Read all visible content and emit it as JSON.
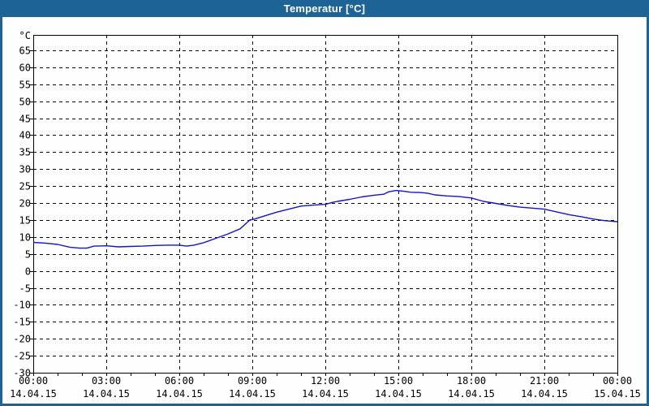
{
  "window": {
    "title": "Temperatur [°C]",
    "title_bar_color": "#1d6396",
    "border_color": "#1d6396",
    "title_text_color": "#ffffff",
    "background_color": "#fdfefd"
  },
  "chart_data": {
    "type": "line",
    "title": "Temperatur [°C]",
    "ylabel": "°C",
    "xlabel": "",
    "legend": null,
    "grid": {
      "shown": true,
      "style": "dashed",
      "color": "#000000"
    },
    "line_color": "#1515c9",
    "axis_color": "#000000",
    "y_axis": {
      "unit_label": "°C",
      "min": -30,
      "max": 65,
      "tick_step": 5
    },
    "x_axis": {
      "hours_span": 24,
      "minor_tick_every_hours": 1,
      "major_tick_every_hours": 3,
      "major_ticks": [
        {
          "hour": 0,
          "time": "00:00",
          "date": "14.04.15"
        },
        {
          "hour": 3,
          "time": "03:00",
          "date": "14.04.15"
        },
        {
          "hour": 6,
          "time": "06:00",
          "date": "14.04.15"
        },
        {
          "hour": 9,
          "time": "09:00",
          "date": "14.04.15"
        },
        {
          "hour": 12,
          "time": "12:00",
          "date": "14.04.15"
        },
        {
          "hour": 15,
          "time": "15:00",
          "date": "14.04.15"
        },
        {
          "hour": 18,
          "time": "18:00",
          "date": "14.04.15"
        },
        {
          "hour": 21,
          "time": "21:00",
          "date": "14.04.15"
        },
        {
          "hour": 24,
          "time": "00:00",
          "date": "15.04.15"
        }
      ]
    },
    "series": [
      {
        "name": "Temperatur",
        "unit": "°C",
        "points": [
          [
            0,
            8.4
          ],
          [
            0.5,
            8.2
          ],
          [
            1,
            7.8
          ],
          [
            1.5,
            7.0
          ],
          [
            1.9,
            6.7
          ],
          [
            2.2,
            6.7
          ],
          [
            2.5,
            7.3
          ],
          [
            3,
            7.4
          ],
          [
            3.5,
            7.1
          ],
          [
            4,
            7.2
          ],
          [
            4.5,
            7.3
          ],
          [
            5,
            7.5
          ],
          [
            5.5,
            7.6
          ],
          [
            6,
            7.6
          ],
          [
            6.3,
            7.3
          ],
          [
            6.6,
            7.6
          ],
          [
            7,
            8.3
          ],
          [
            7.5,
            9.6
          ],
          [
            8,
            10.9
          ],
          [
            8.5,
            12.4
          ],
          [
            8.9,
            15.0
          ],
          [
            9.1,
            15.3
          ],
          [
            9.5,
            16.2
          ],
          [
            10,
            17.3
          ],
          [
            10.5,
            18.2
          ],
          [
            11,
            19.1
          ],
          [
            11.5,
            19.4
          ],
          [
            12,
            19.6
          ],
          [
            12.3,
            20.2
          ],
          [
            12.5,
            20.5
          ],
          [
            13,
            21.1
          ],
          [
            13.5,
            21.8
          ],
          [
            14,
            22.3
          ],
          [
            14.4,
            22.6
          ],
          [
            14.6,
            23.3
          ],
          [
            14.9,
            23.7
          ],
          [
            15.2,
            23.5
          ],
          [
            15.5,
            23.2
          ],
          [
            15.9,
            23.1
          ],
          [
            16.2,
            22.9
          ],
          [
            16.5,
            22.4
          ],
          [
            17,
            22.1
          ],
          [
            17.5,
            21.9
          ],
          [
            18,
            21.5
          ],
          [
            18.5,
            20.5
          ],
          [
            19,
            19.9
          ],
          [
            19.5,
            19.3
          ],
          [
            20,
            18.8
          ],
          [
            20.5,
            18.5
          ],
          [
            21,
            18.2
          ],
          [
            21.5,
            17.4
          ],
          [
            22,
            16.6
          ],
          [
            22.5,
            16.0
          ],
          [
            23,
            15.3
          ],
          [
            23.5,
            14.8
          ],
          [
            24,
            14.5
          ]
        ]
      }
    ]
  }
}
